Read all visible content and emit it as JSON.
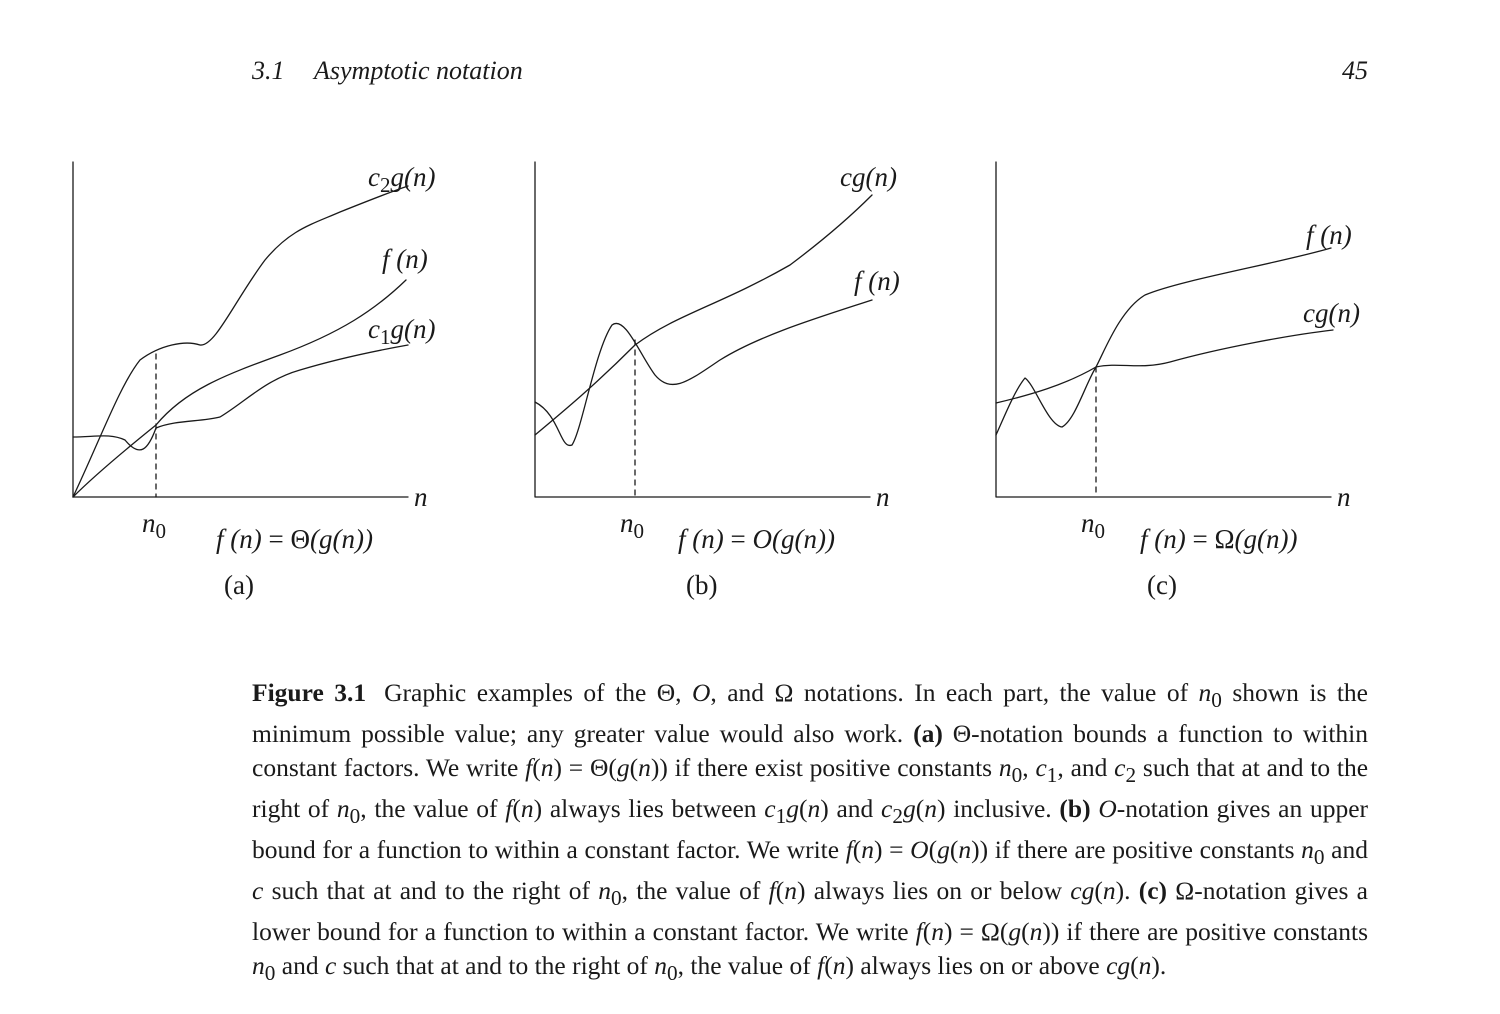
{
  "header": {
    "section_number": "3.1",
    "section_title": "Asymptotic notation",
    "page_number": "45"
  },
  "figure": {
    "panels": [
      {
        "letter": "(a)",
        "equation": "f(n) = Θ(g(n))",
        "curves": [
          "c₂g(n)",
          "f(n)",
          "c₁g(n)"
        ],
        "threshold": "n₀",
        "axis_label": "n"
      },
      {
        "letter": "(b)",
        "equation": "f(n) = O(g(n))",
        "curves": [
          "cg(n)",
          "f(n)"
        ],
        "threshold": "n₀",
        "axis_label": "n"
      },
      {
        "letter": "(c)",
        "equation": "f(n) = Ω(g(n))",
        "curves": [
          "f(n)",
          "cg(n)"
        ],
        "threshold": "n₀",
        "axis_label": "n"
      }
    ]
  },
  "caption": {
    "label": "Figure 3.1",
    "text": "Graphic examples of the Θ, O, and Ω notations. In each part, the value of n₀ shown is the minimum possible value; any greater value would also work. (a) Θ-notation bounds a function to within constant factors. We write f(n) = Θ(g(n)) if there exist positive constants n₀, c₁, and c₂ such that at and to the right of n₀, the value of f(n) always lies between c₁g(n) and c₂g(n) inclusive. (b) O-notation gives an upper bound for a function to within a constant factor. We write f(n) = O(g(n)) if there are positive constants n₀ and c such that at and to the right of n₀, the value of f(n) always lies on or below cg(n). (c) Ω-notation gives a lower bound for a function to within a constant factor. We write f(n) = Ω(g(n)) if there are positive constants n₀ and c such that at and to the right of n₀, the value of f(n) always lies on or above cg(n)."
  }
}
